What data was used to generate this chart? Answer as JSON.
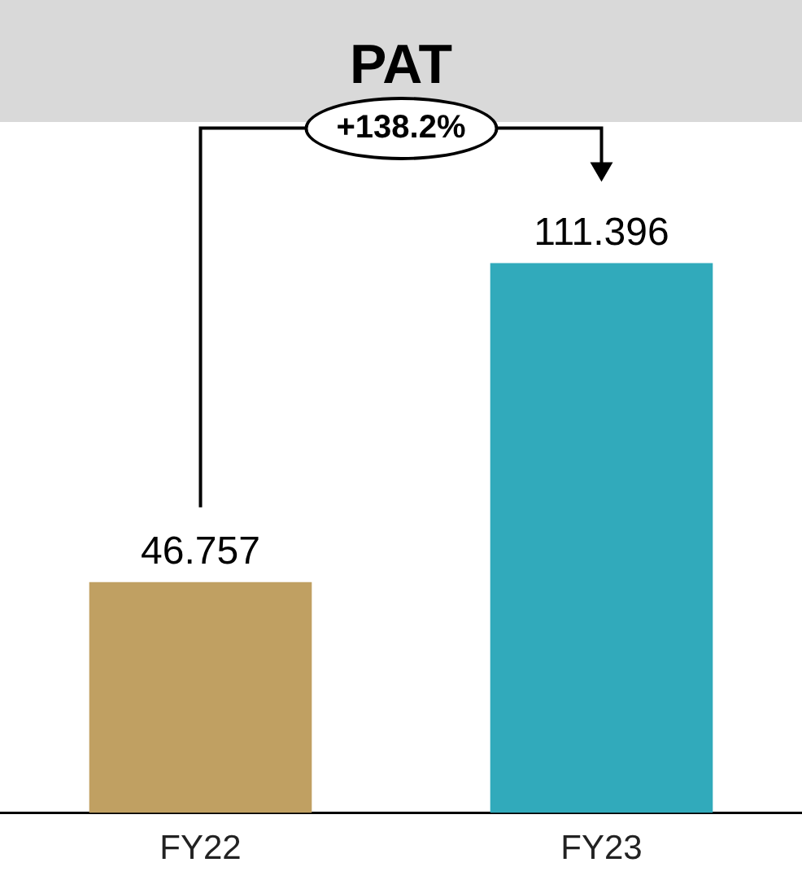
{
  "chart_data": {
    "type": "bar",
    "title": "PAT",
    "categories": [
      "FY22",
      "FY23"
    ],
    "values": [
      46.757,
      111.396
    ],
    "colors": [
      "#c0a062",
      "#31aabb"
    ],
    "data_labels": true,
    "grid": false,
    "legend": false,
    "annotations": [
      "+138.2%"
    ]
  }
}
